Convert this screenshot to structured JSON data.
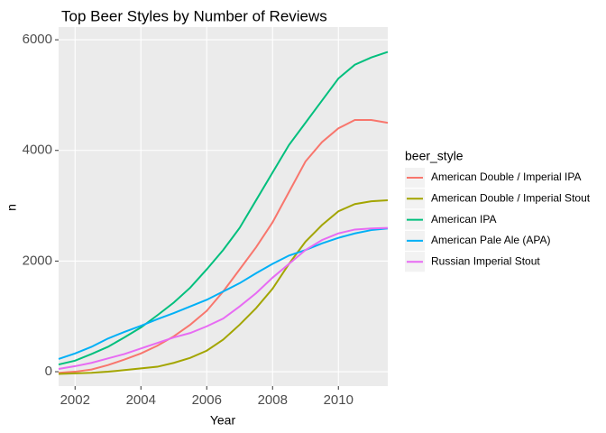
{
  "chart_data": {
    "type": "line",
    "title": "Top Beer Styles by Number of Reviews",
    "x_label": "Year",
    "y_label": "n",
    "legend_title": "beer_style",
    "x": [
      2001.5,
      2002,
      2002.5,
      2003,
      2003.5,
      2004,
      2004.5,
      2005,
      2005.5,
      2006,
      2006.5,
      2007,
      2007.5,
      2008,
      2008.5,
      2009,
      2009.5,
      2010,
      2010.5,
      2011,
      2011.5
    ],
    "series": [
      {
        "name": "American Double / Imperial IPA",
        "color": "#F8766D",
        "values": [
          -20,
          0,
          40,
          120,
          220,
          330,
          470,
          640,
          850,
          1100,
          1450,
          1850,
          2250,
          2700,
          3250,
          3800,
          4150,
          4400,
          4550,
          4550,
          4500
        ]
      },
      {
        "name": "American Double / Imperial Stout",
        "color": "#A3A500",
        "values": [
          -40,
          -30,
          -20,
          0,
          30,
          60,
          90,
          160,
          250,
          380,
          580,
          850,
          1150,
          1500,
          1950,
          2350,
          2650,
          2900,
          3030,
          3080,
          3100
        ]
      },
      {
        "name": "American IPA",
        "color": "#00BF7D",
        "values": [
          130,
          200,
          320,
          450,
          620,
          800,
          1020,
          1250,
          1520,
          1850,
          2200,
          2600,
          3100,
          3600,
          4100,
          4500,
          4900,
          5300,
          5550,
          5680,
          5780
        ]
      },
      {
        "name": "American Pale Ale (APA)",
        "color": "#00B0F6",
        "values": [
          230,
          330,
          450,
          600,
          720,
          830,
          950,
          1060,
          1180,
          1300,
          1450,
          1600,
          1780,
          1950,
          2100,
          2200,
          2320,
          2420,
          2500,
          2560,
          2590
        ]
      },
      {
        "name": "Russian Imperial Stout",
        "color": "#E76BF3",
        "values": [
          50,
          100,
          160,
          240,
          320,
          420,
          520,
          620,
          700,
          820,
          960,
          1180,
          1420,
          1700,
          1950,
          2200,
          2380,
          2500,
          2570,
          2590,
          2600
        ]
      }
    ],
    "xlim": [
      2001.5,
      2011.5
    ],
    "xticks": [
      2002,
      2004,
      2006,
      2008,
      2010
    ],
    "ylim": [
      -260,
      6230
    ],
    "yticks": [
      0,
      2000,
      4000,
      6000
    ],
    "grid": true,
    "legend": "right"
  }
}
